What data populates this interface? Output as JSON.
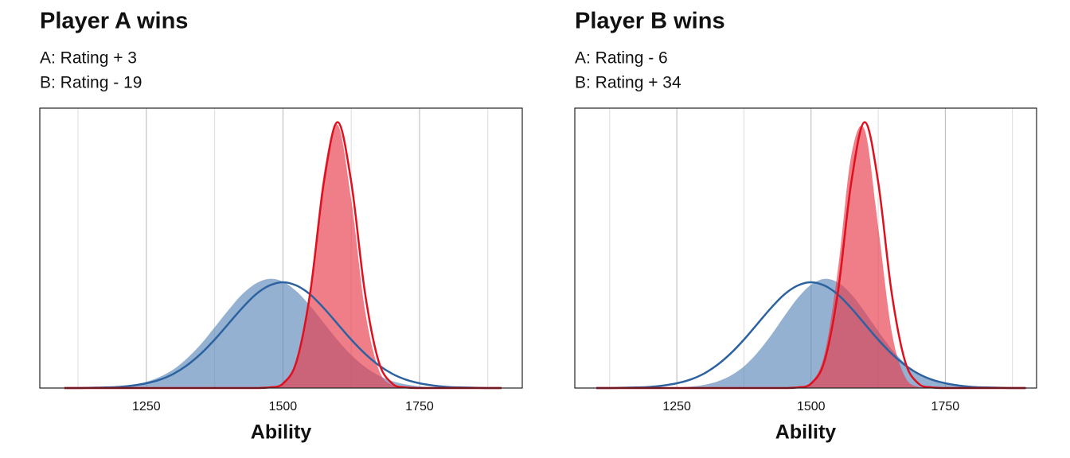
{
  "chart_data": [
    {
      "type": "area",
      "title": "Player A wins",
      "subtitle": [
        "A: Rating + 3",
        "B: Rating - 19"
      ],
      "xlabel": "Ability",
      "x": [
        1100,
        1125,
        1150,
        1175,
        1200,
        1225,
        1250,
        1275,
        1300,
        1325,
        1350,
        1375,
        1400,
        1425,
        1450,
        1475,
        1500,
        1525,
        1550,
        1575,
        1600,
        1625,
        1650,
        1675,
        1700,
        1725,
        1750,
        1775,
        1800,
        1825,
        1850,
        1875,
        1900
      ],
      "xlim": [
        1055,
        1938
      ],
      "xticks": [
        1250,
        1500,
        1750
      ],
      "xminorticks": [
        1125,
        1375,
        1625,
        1875
      ],
      "ylim": [
        0,
        1
      ],
      "grid": true,
      "series": [
        {
          "style": "fill",
          "color": "#5b87b8",
          "values": [
            0,
            0,
            0.001,
            0.002,
            0.005,
            0.011,
            0.022,
            0.04,
            0.067,
            0.107,
            0.157,
            0.217,
            0.278,
            0.334,
            0.373,
            0.39,
            0.38,
            0.345,
            0.293,
            0.232,
            0.171,
            0.118,
            0.076,
            0.045,
            0.025,
            0.013,
            0.006,
            0.003,
            0.001,
            0,
            0,
            0,
            0
          ]
        },
        {
          "style": "fill",
          "color": "#e8394a",
          "values": [
            0,
            0,
            0,
            0,
            0,
            0,
            0,
            0,
            0,
            0,
            0,
            0,
            0,
            0,
            0,
            0.002,
            0.016,
            0.1,
            0.364,
            0.767,
            0.941,
            0.673,
            0.28,
            0.068,
            0.01,
            0.001,
            0,
            0,
            0,
            0,
            0,
            0,
            0
          ]
        },
        {
          "style": "line",
          "color": "#2c62a0",
          "values": [
            0,
            0,
            0.001,
            0.002,
            0.004,
            0.009,
            0.017,
            0.03,
            0.051,
            0.082,
            0.123,
            0.173,
            0.229,
            0.285,
            0.334,
            0.366,
            0.378,
            0.366,
            0.334,
            0.285,
            0.229,
            0.173,
            0.123,
            0.082,
            0.051,
            0.03,
            0.017,
            0.009,
            0.004,
            0.002,
            0.001,
            0,
            0
          ]
        },
        {
          "style": "line",
          "color": "#e0101e",
          "values": [
            0,
            0,
            0,
            0,
            0,
            0,
            0,
            0,
            0,
            0,
            0,
            0,
            0,
            0,
            0,
            0.002,
            0.016,
            0.096,
            0.342,
            0.736,
            0.95,
            0.736,
            0.342,
            0.096,
            0.016,
            0.002,
            0,
            0,
            0,
            0,
            0,
            0,
            0
          ]
        }
      ]
    },
    {
      "type": "area",
      "title": "Player B wins",
      "subtitle": [
        "A: Rating - 6",
        "B: Rating + 34"
      ],
      "xlabel": "Ability",
      "x": [
        1100,
        1125,
        1150,
        1175,
        1200,
        1225,
        1250,
        1275,
        1300,
        1325,
        1350,
        1375,
        1400,
        1425,
        1450,
        1475,
        1500,
        1525,
        1550,
        1575,
        1600,
        1625,
        1650,
        1675,
        1700,
        1725,
        1750,
        1775,
        1800,
        1825,
        1850,
        1875,
        1900
      ],
      "xlim": [
        1060,
        1920
      ],
      "xticks": [
        1250,
        1500,
        1750
      ],
      "xminorticks": [
        1125,
        1375,
        1625,
        1875
      ],
      "ylim": [
        0,
        1
      ],
      "grid": true,
      "series": [
        {
          "style": "fill",
          "color": "#5b87b8",
          "values": [
            0,
            0,
            0,
            0,
            0,
            0.001,
            0.002,
            0.005,
            0.011,
            0.023,
            0.044,
            0.077,
            0.126,
            0.187,
            0.256,
            0.321,
            0.369,
            0.39,
            0.377,
            0.335,
            0.272,
            0.203,
            0.139,
            0.088,
            0.05,
            0.027,
            0.013,
            0.006,
            0.002,
            0.001,
            0,
            0,
            0
          ]
        },
        {
          "style": "fill",
          "color": "#e8394a",
          "values": [
            0,
            0,
            0,
            0,
            0,
            0,
            0,
            0,
            0,
            0,
            0,
            0,
            0,
            0,
            0,
            0.002,
            0.019,
            0.121,
            0.423,
            0.832,
            0.922,
            0.576,
            0.203,
            0.04,
            0.004,
            0,
            0,
            0,
            0,
            0,
            0,
            0,
            0
          ]
        },
        {
          "style": "line",
          "color": "#2c62a0",
          "values": [
            0,
            0,
            0.001,
            0.002,
            0.004,
            0.009,
            0.017,
            0.03,
            0.051,
            0.082,
            0.123,
            0.173,
            0.229,
            0.285,
            0.334,
            0.366,
            0.378,
            0.366,
            0.334,
            0.285,
            0.229,
            0.173,
            0.123,
            0.082,
            0.051,
            0.03,
            0.017,
            0.009,
            0.004,
            0.002,
            0.001,
            0,
            0
          ]
        },
        {
          "style": "line",
          "color": "#e0101e",
          "values": [
            0,
            0,
            0,
            0,
            0,
            0,
            0,
            0,
            0,
            0,
            0,
            0,
            0,
            0,
            0,
            0.002,
            0.016,
            0.096,
            0.342,
            0.736,
            0.95,
            0.736,
            0.342,
            0.096,
            0.016,
            0.002,
            0,
            0,
            0,
            0,
            0,
            0,
            0
          ]
        }
      ]
    }
  ]
}
